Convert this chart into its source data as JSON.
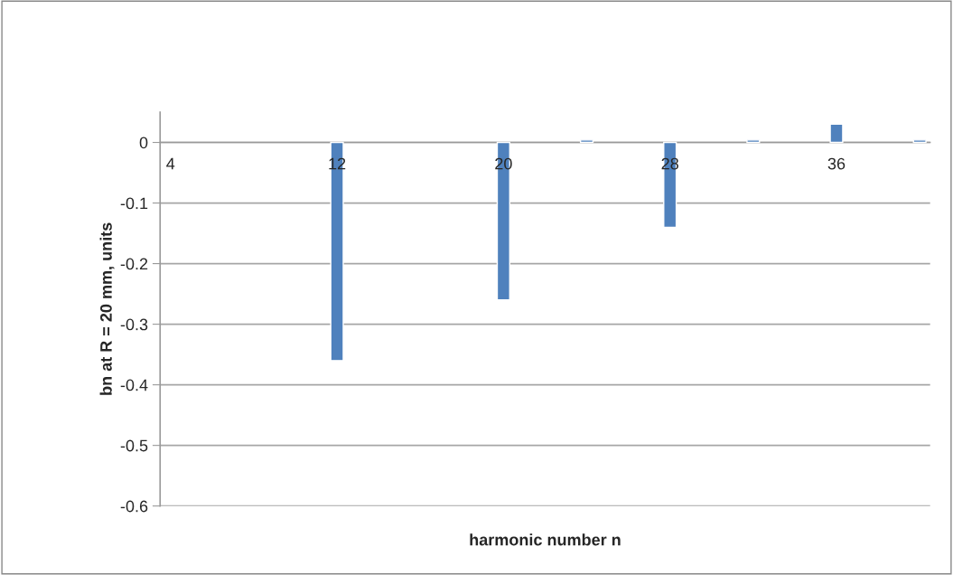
{
  "chart_data": {
    "type": "bar",
    "xlabel": "harmonic number n",
    "ylabel": "bn at R = 20 mm, units",
    "categories": [
      "4",
      null,
      null,
      null,
      null,
      null,
      null,
      null,
      "12",
      null,
      null,
      null,
      null,
      null,
      null,
      null,
      "20",
      null,
      null,
      null,
      null,
      null,
      null,
      null,
      "28",
      null,
      null,
      null,
      null,
      null,
      null,
      null,
      "36",
      null,
      null,
      null,
      null
    ],
    "values": [
      null,
      null,
      null,
      null,
      null,
      null,
      null,
      null,
      -0.36,
      null,
      null,
      null,
      null,
      null,
      null,
      null,
      -0.26,
      null,
      null,
      null,
      0.004,
      null,
      null,
      null,
      -0.14,
      null,
      null,
      null,
      0.004,
      null,
      null,
      null,
      0.03,
      null,
      null,
      null,
      0.004
    ],
    "color": "#4f81bd",
    "ylim": [
      -0.6,
      0.05
    ],
    "yticks": [
      -0.6,
      -0.5,
      -0.4,
      -0.3,
      -0.2,
      -0.1,
      0
    ],
    "grid": "y",
    "legend": false
  }
}
